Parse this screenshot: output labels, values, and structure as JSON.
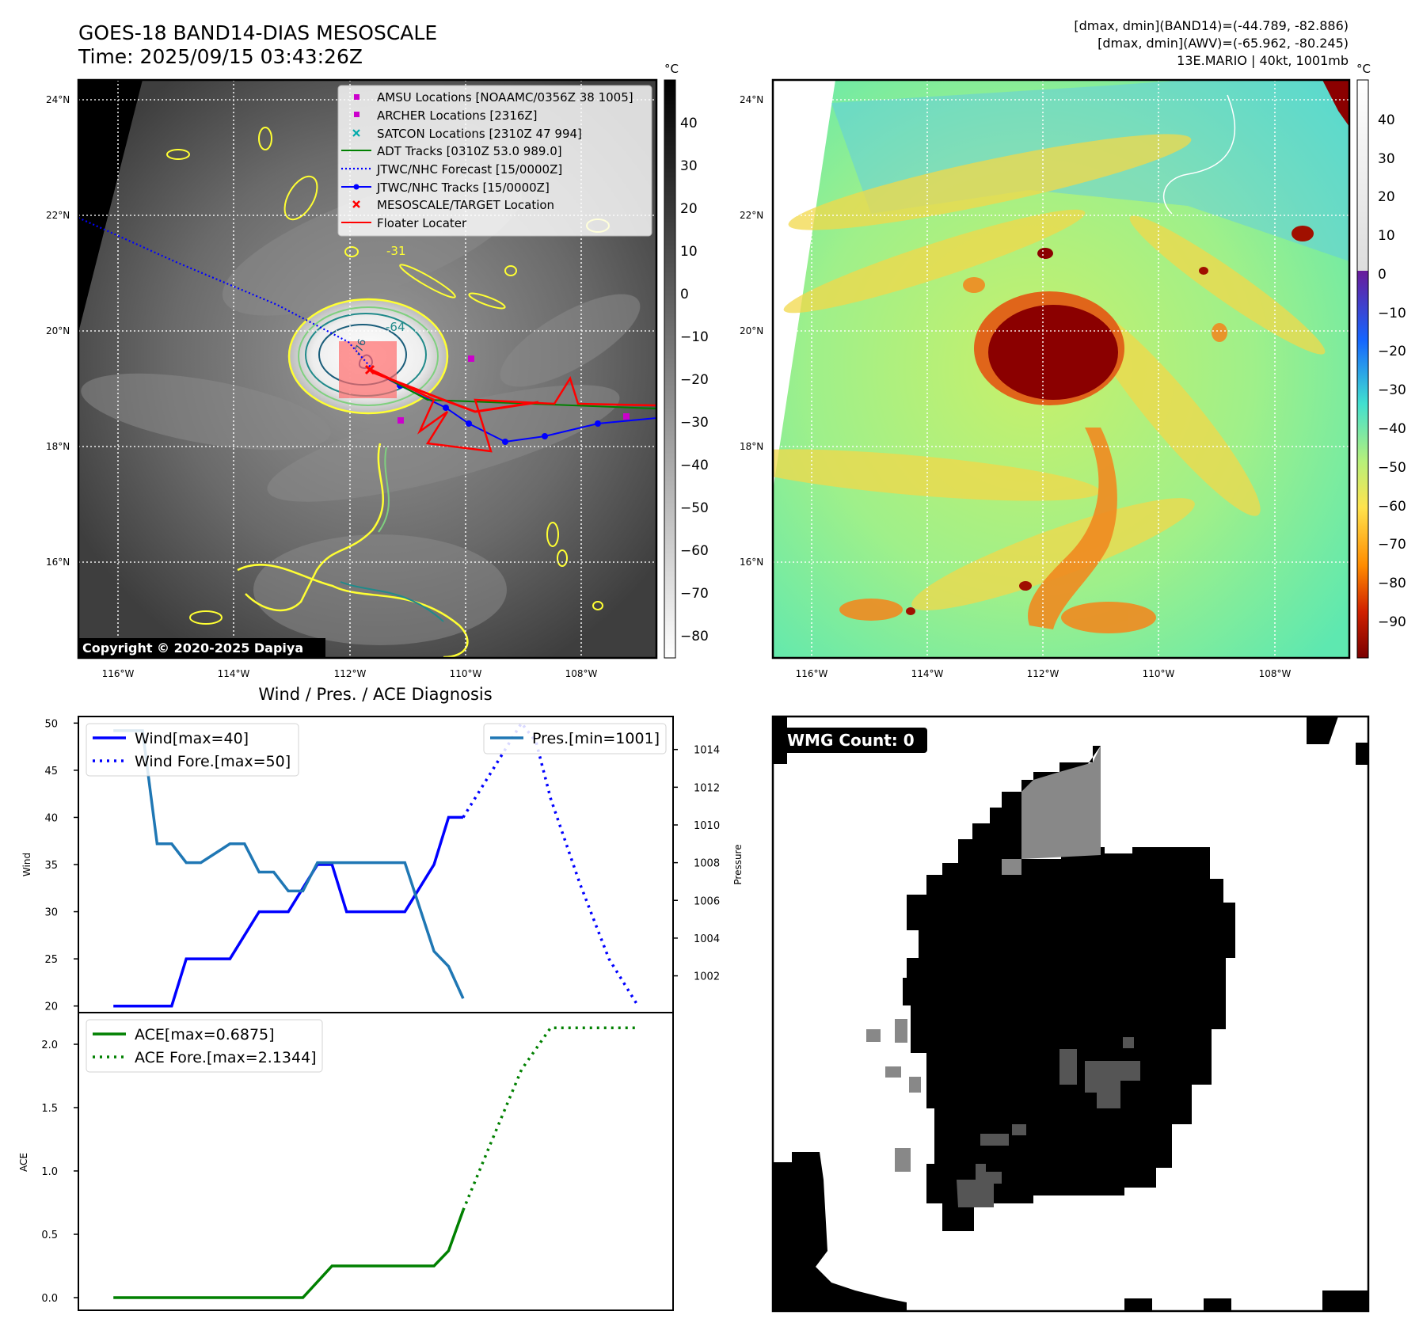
{
  "header": {
    "title": "GOES-18 BAND14-DIAS MESOSCALE",
    "time": "Time: 2025/09/15 03:43:26Z",
    "stats_band14": "[dmax, dmin](BAND14)=(-44.789, -82.886)",
    "stats_awv": "[dmax, dmin](AWV)=(-65.962, -80.245)",
    "storm": "13E.MARIO | 40kt, 1001mb"
  },
  "map": {
    "lat_ticks": [
      "24°N",
      "22°N",
      "20°N",
      "18°N",
      "16°N"
    ],
    "lon_ticks": [
      "116°W",
      "114°W",
      "112°W",
      "110°W",
      "108°W"
    ],
    "copyright": "Copyright © 2020-2025 Dapiya",
    "contour_labels": [
      "-31",
      "-64",
      "-76"
    ],
    "legend": [
      {
        "label": "AMSU Locations [NOAAMC/0356Z 38 1005]",
        "marker": "square",
        "color": "#cc00cc"
      },
      {
        "label": "ARCHER Locations [2316Z]",
        "marker": "square",
        "color": "#cc00cc"
      },
      {
        "label": "SATCON Locations [2310Z 47 994]",
        "marker": "x",
        "color": "#00aaaa"
      },
      {
        "label": "ADT Tracks [0310Z 53.0 989.0]",
        "marker": "line",
        "color": "#008000"
      },
      {
        "label": "JTWC/NHC Forecast [15/0000Z]",
        "marker": "dotted",
        "color": "#0000ff"
      },
      {
        "label": "JTWC/NHC Tracks [15/0000Z]",
        "marker": "line-dot",
        "color": "#0000ff"
      },
      {
        "label": "MESOSCALE/TARGET Location",
        "marker": "x",
        "color": "#ff0000"
      },
      {
        "label": "Floater Locater",
        "marker": "line",
        "color": "#ff0000"
      }
    ]
  },
  "colorbars": {
    "unit": "°C",
    "band14_ticks": [
      "40",
      "30",
      "20",
      "10",
      "0",
      "−10",
      "−20",
      "−30",
      "−40",
      "−50",
      "−60",
      "−70",
      "−80"
    ],
    "awv_ticks": [
      "40",
      "30",
      "20",
      "10",
      "0",
      "−10",
      "−20",
      "−30",
      "−40",
      "−50",
      "−60",
      "−70",
      "−80",
      "−90"
    ]
  },
  "wmg": {
    "label": "WMG Count: 0"
  },
  "chart_data": [
    {
      "type": "line",
      "title": "Wind / Pres. / ACE Diagnosis",
      "ylabel": "Wind",
      "y2label": "Pressure",
      "ylim": [
        19.3,
        50.7
      ],
      "y2lim": [
        1000.05,
        1015.75
      ],
      "yticks": [
        "50",
        "45",
        "40",
        "35",
        "30",
        "25",
        "20"
      ],
      "y2ticks": [
        "1014",
        "1012",
        "1010",
        "1008",
        "1006",
        "1004",
        "1002"
      ],
      "xlim": [
        -1.2,
        19.2
      ],
      "legend_left": [
        "Wind[max=40]",
        "Wind Fore.[max=50]"
      ],
      "legend_right": [
        "Pres.[min=1001]"
      ],
      "series": [
        {
          "name": "Wind[max=40]",
          "axis": "left",
          "color": "#0000ff",
          "style": "solid",
          "x": [
            0,
            1,
            2,
            2.5,
            3,
            4,
            5,
            5.5,
            6,
            7,
            7.5,
            8,
            8.5,
            9,
            10,
            11,
            11.5,
            12
          ],
          "y": [
            20,
            20,
            20,
            25,
            25,
            25,
            30,
            30,
            30,
            35,
            35,
            30,
            30,
            30,
            30,
            35,
            40,
            40
          ]
        },
        {
          "name": "Wind Fore.[max=50]",
          "axis": "left",
          "color": "#0000ff",
          "style": "dotted",
          "x": [
            12,
            13,
            14,
            14.5,
            15,
            16,
            17,
            18
          ],
          "y": [
            40,
            45,
            50,
            48,
            42,
            33,
            25,
            20
          ]
        },
        {
          "name": "Pres.[min=1001]",
          "axis": "right",
          "color": "#1f77b4",
          "style": "solid",
          "x": [
            0,
            1,
            1.5,
            2,
            2.5,
            3,
            4,
            4.5,
            5,
            5.5,
            6,
            6.5,
            7,
            7.5,
            8,
            9,
            10,
            11,
            11.5,
            12
          ],
          "y": [
            1015,
            1015,
            1009,
            1009,
            1008,
            1008,
            1009,
            1009,
            1007.5,
            1007.5,
            1006.5,
            1006.5,
            1008,
            1008,
            1008,
            1008,
            1008,
            1003.3,
            1002.5,
            1000.8
          ]
        }
      ]
    },
    {
      "type": "line",
      "ylabel": "ACE",
      "ylim": [
        -0.1,
        2.25
      ],
      "yticks": [
        "2.0",
        "1.5",
        "1.0",
        "0.5",
        "0.0"
      ],
      "xlim": [
        -1.2,
        19.2
      ],
      "legend": [
        "ACE[max=0.6875]",
        "ACE Fore.[max=2.1344]"
      ],
      "series": [
        {
          "name": "ACE[max=0.6875]",
          "color": "#008000",
          "style": "solid",
          "x": [
            0,
            2,
            4,
            6,
            6.5,
            7.5,
            9,
            10,
            11,
            11.5,
            12
          ],
          "y": [
            0,
            0,
            0,
            0,
            0,
            0.25,
            0.25,
            0.25,
            0.25,
            0.37,
            0.69
          ]
        },
        {
          "name": "ACE Fore.[max=2.1344]",
          "color": "#008000",
          "style": "dotted",
          "x": [
            12,
            13,
            14,
            15,
            16,
            17,
            18
          ],
          "y": [
            0.69,
            1.25,
            1.8,
            2.13,
            2.13,
            2.13,
            2.13
          ]
        }
      ]
    }
  ]
}
